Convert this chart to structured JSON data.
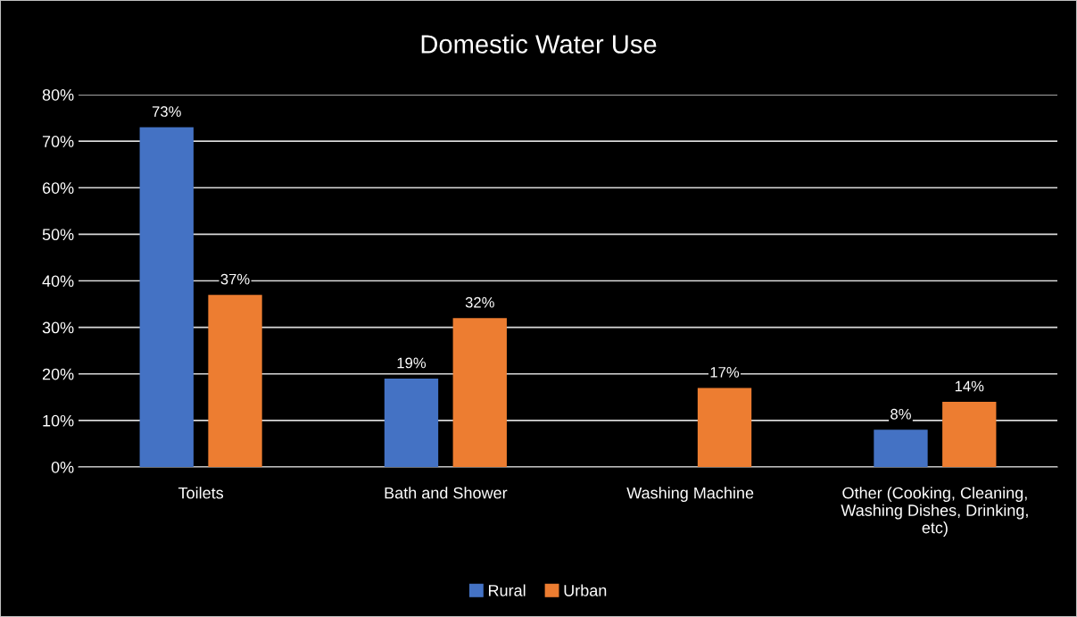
{
  "chart_data": {
    "type": "bar",
    "title": "Domestic Water Use",
    "categories": [
      "Toilets",
      "Bath and Shower",
      "Washing Machine",
      "Other (Cooking, Cleaning, Washing Dishes, Drinking, etc)"
    ],
    "series": [
      {
        "name": "Rural",
        "color": "#4472c4",
        "values": [
          73,
          19,
          null,
          8
        ],
        "value_labels": [
          "73%",
          "19%",
          null,
          "8%"
        ]
      },
      {
        "name": "Urban",
        "color": "#ed7d31",
        "values": [
          37,
          32,
          17,
          14
        ],
        "value_labels": [
          "37%",
          "32%",
          "17%",
          "14%"
        ]
      }
    ],
    "ylim": [
      0,
      80
    ],
    "yticks": [
      {
        "value": 0,
        "label": "0%"
      },
      {
        "value": 10,
        "label": "10%"
      },
      {
        "value": 20,
        "label": "20%"
      },
      {
        "value": 30,
        "label": "30%"
      },
      {
        "value": 40,
        "label": "40%"
      },
      {
        "value": 50,
        "label": "50%"
      },
      {
        "value": 60,
        "label": "60%"
      },
      {
        "value": 70,
        "label": "70%"
      },
      {
        "value": 80,
        "label": "80%"
      }
    ],
    "grid": "y",
    "legend": "bottom"
  }
}
